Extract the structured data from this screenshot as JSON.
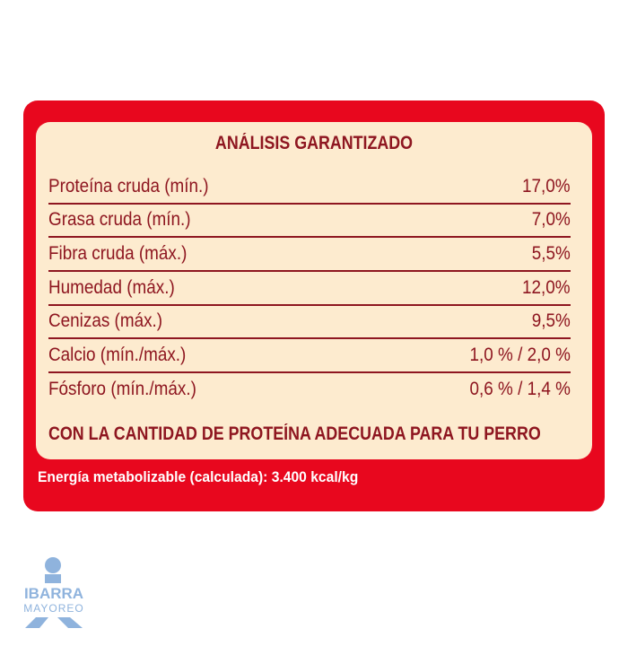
{
  "title": "ANÁLISIS GARANTIZADO",
  "rows": [
    {
      "label": "Proteína cruda (mín.)",
      "value": "17,0%"
    },
    {
      "label": "Grasa cruda (mín.)",
      "value": "7,0%"
    },
    {
      "label": "Fibra cruda (máx.)",
      "value": "5,5%"
    },
    {
      "label": "Humedad (máx.)",
      "value": "12,0%"
    },
    {
      "label": "Cenizas (máx.)",
      "value": "9,5%"
    },
    {
      "label": "Calcio (mín./máx.)",
      "value": "1,0 % / 2,0 %"
    },
    {
      "label": "Fósforo (mín./máx.)",
      "value": "0,6 % / 1,4 %"
    }
  ],
  "footer": "CON LA CANTIDAD DE PROTEÍNA ADECUADA PARA TU PERRO",
  "energy": "Energía metabolizable (calculada): 3.400 kcal/kg",
  "logo": {
    "line1": "IBARRA",
    "line2": "MAYOREO"
  },
  "colors": {
    "red": "#e8071e",
    "cream": "#fdebcf",
    "text": "#8e1620",
    "logo": "#8fb3dd"
  }
}
